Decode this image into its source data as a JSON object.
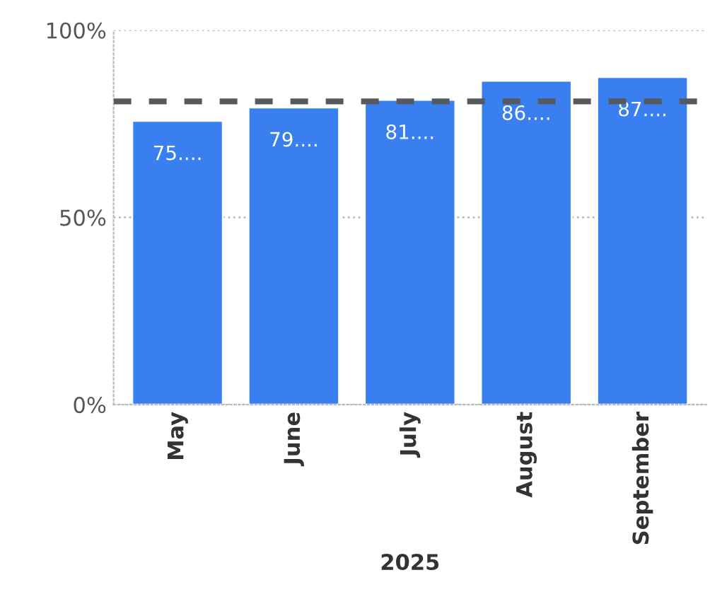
{
  "chart_data": {
    "type": "bar",
    "xlabel": "2025",
    "categories": [
      "May",
      "June",
      "July",
      "August",
      "September"
    ],
    "values": [
      75.8,
      79.4,
      81.4,
      86.5,
      87.5
    ],
    "value_labels": [
      "75....",
      "79....",
      "81....",
      "86....",
      "87...."
    ],
    "color": "#3a7ff0",
    "ylim": [
      0,
      100
    ],
    "yticks": [
      {
        "value": 0,
        "label": "0%"
      },
      {
        "value": 50,
        "label": "50%"
      },
      {
        "value": 100,
        "label": "100%"
      }
    ],
    "grid": "y",
    "ref_lines": [
      {
        "axis": "y",
        "value": 81,
        "color": "#555a60",
        "line_style": "dashed"
      }
    ]
  }
}
